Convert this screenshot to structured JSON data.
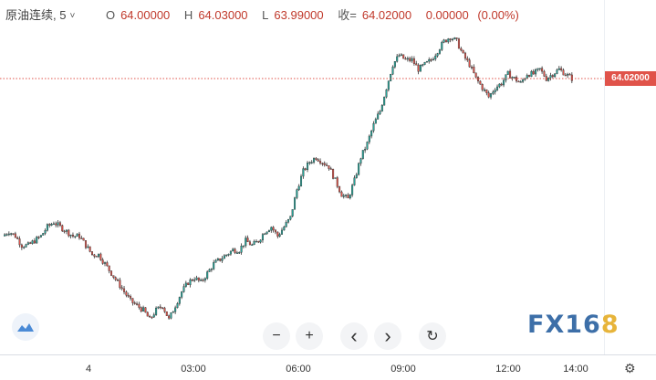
{
  "legend": {
    "symbol": "原油连续, 5",
    "dropdown_glyph": "˅",
    "open_key": "O",
    "open": "64.00000",
    "high_key": "H",
    "high": "64.03000",
    "low_key": "L",
    "low": "63.99000",
    "close_key": "收=",
    "close": "64.02000",
    "change": "0.00000",
    "change_pct": "(0.00%)"
  },
  "price_tag": "64.02000",
  "brand": {
    "main": "FX16",
    "accent": "8"
  },
  "controls": {
    "zoom_out": "−",
    "zoom_in": "+",
    "prev": "‹",
    "next": "›",
    "reset": "↻"
  },
  "x_ticks": [
    "4",
    "03:00",
    "06:00",
    "09:00",
    "12:00",
    "14:00"
  ],
  "colors": {
    "up": "#26a69a",
    "down": "#e0534a",
    "last_line": "#e0534a",
    "wick": "#333333"
  },
  "chart_data": {
    "type": "candlestick",
    "last_price": 64.02,
    "x_tick_labels": [
      "4",
      "03:00",
      "06:00",
      "09:00",
      "12:00",
      "14:00"
    ],
    "approx_path": [
      63.68,
      63.69,
      63.68,
      63.66,
      63.66,
      63.67,
      63.68,
      63.7,
      63.71,
      63.7,
      63.69,
      63.68,
      63.68,
      63.66,
      63.64,
      63.64,
      63.62,
      63.6,
      63.58,
      63.56,
      63.54,
      63.53,
      63.52,
      63.5,
      63.52,
      63.53,
      63.5,
      63.53,
      63.56,
      63.58,
      63.59,
      63.58,
      63.6,
      63.62,
      63.63,
      63.64,
      63.65,
      63.65,
      63.67,
      63.66,
      63.67,
      63.69,
      63.7,
      63.68,
      63.7,
      63.72,
      63.78,
      63.82,
      63.84,
      63.85,
      63.84,
      63.83,
      63.8,
      63.77,
      63.76,
      63.8,
      63.85,
      63.88,
      63.92,
      63.95,
      64.0,
      64.05,
      64.07,
      64.06,
      64.06,
      64.04,
      64.05,
      64.06,
      64.08,
      64.1,
      64.11,
      64.1,
      64.07,
      64.05,
      64.02,
      64.0,
      63.98,
      64.0,
      64.01,
      64.03,
      64.02,
      64.01,
      64.03,
      64.03,
      64.04,
      64.02,
      64.03,
      64.04,
      64.03,
      64.02
    ]
  }
}
